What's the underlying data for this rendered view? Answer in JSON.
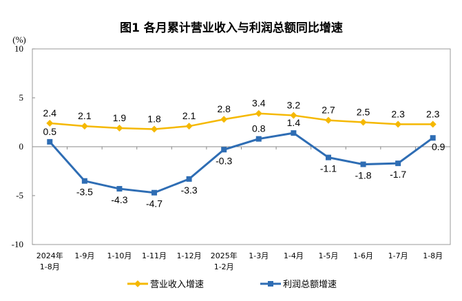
{
  "chart_data": {
    "type": "line",
    "title": "图1  各月累计营业收入与利润总额同比增速",
    "ylabel": "(%)",
    "ylim": [
      -10,
      10
    ],
    "yticks": [
      10,
      5,
      0,
      -5,
      -10
    ],
    "grid": false,
    "legend": "bottom",
    "categories": [
      [
        "2024年",
        "1-8月"
      ],
      [
        "1-9月"
      ],
      [
        "1-10月"
      ],
      [
        "1-11月"
      ],
      [
        "1-12月"
      ],
      [
        "2025年",
        "1-2月"
      ],
      [
        "1-3月"
      ],
      [
        "1-4月"
      ],
      [
        "1-5月"
      ],
      [
        "1-6月"
      ],
      [
        "1-7月"
      ],
      [
        "1-8月"
      ]
    ],
    "series": [
      {
        "name": "营业收入增速",
        "color": "#F5B800",
        "marker": "diamond",
        "values": [
          2.4,
          2.1,
          1.9,
          1.8,
          2.1,
          2.8,
          3.4,
          3.2,
          2.7,
          2.5,
          2.3,
          2.3
        ]
      },
      {
        "name": "利润总额增速",
        "color": "#2E6DB4",
        "marker": "square",
        "values": [
          0.5,
          -3.5,
          -4.3,
          -4.7,
          -3.3,
          -0.3,
          0.8,
          1.4,
          -1.1,
          -1.8,
          -1.7,
          0.9
        ]
      }
    ]
  }
}
